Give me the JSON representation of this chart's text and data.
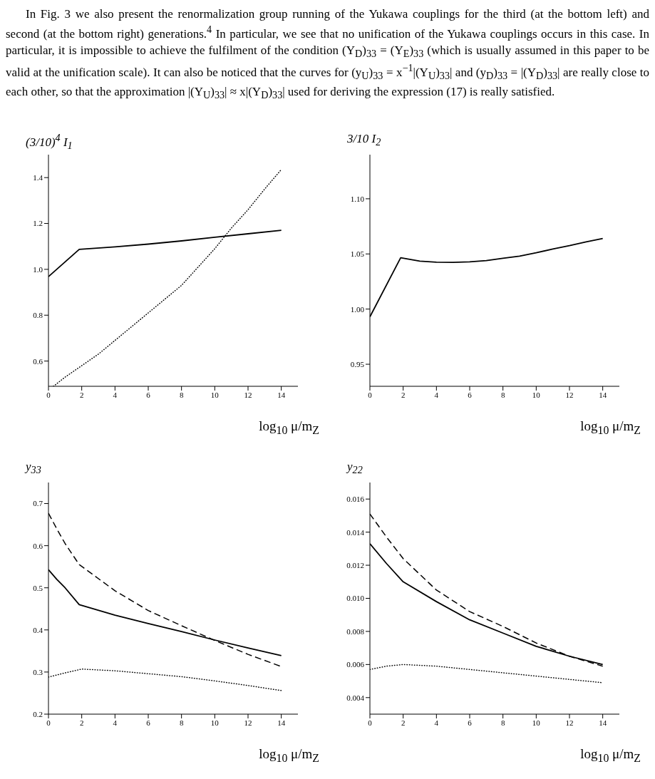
{
  "chart_data": [
    {
      "type": "line",
      "ylabel": "(3/10)$^{4}$ I$_{1}$",
      "xlabel": "log$_{10}$ μ/m$_{Z}$",
      "annotations": [
        "In Fig. 3 we also present the renormalization group running of the Yukawa couplings for the third (at the bottom left) and second (at the bottom right) generations.$^{4}$ In particular, we see that no unification of the Yukawa couplings occurs in this case. In particular, it is impossible to achieve the fulfilment of the condition (Y$_{D}$)$_{33}$ = (Y$_{E}$)$_{33}$ (which is usually assumed in this paper to be valid at the unification scale). It can also be noticed that the curves for (y$_{U}$)$_{33}$ = x$^{−1}$|(Y$_{U}$)$_{33}$| and (y$_{D}$)$_{33}$ = |(Y$_{D}$)$_{33}$| are really close to each other, so that the approximation |(Y$_{U}$)$_{33}$| ≈ x|(Y$_{D}$)$_{33}$| used for deriving the expression (17) is really satisfied."
      ],
      "xlim": [
        0,
        15
      ],
      "xticks": [
        0,
        2,
        4,
        6,
        8,
        10,
        12,
        14
      ],
      "ylim": [
        0.49,
        1.5
      ],
      "yticks": [
        0.6,
        0.8,
        {
          "value": 1,
          "label": "1.0"
        },
        1.2,
        1.4
      ],
      "marker": "none",
      "series": [
        {
          "color": "#000000",
          "line_style": "solid",
          "x": [
            0,
            1.85,
            4,
            6,
            8,
            10,
            12,
            14
          ],
          "values": [
            0.968,
            1.087,
            1.098,
            1.11,
            1.124,
            1.14,
            1.155,
            1.17
          ]
        },
        {
          "color": "#000000",
          "line_style": "dotted",
          "x": [
            0.3,
            1,
            2,
            3,
            4,
            5,
            6,
            7,
            8,
            9,
            10,
            11,
            12,
            13,
            14
          ],
          "values": [
            0.49,
            0.53,
            0.58,
            0.63,
            0.69,
            0.75,
            0.81,
            0.87,
            0.93,
            1.01,
            1.09,
            1.18,
            1.26,
            1.35,
            1.435
          ]
        }
      ]
    },
    {
      "type": "line",
      "ylabel": "3/10 I$_{2}$",
      "xlabel": "log$_{10}$ μ/m$_{Z}$",
      "xlim": [
        0,
        15
      ],
      "xticks": [
        0,
        2,
        4,
        6,
        8,
        10,
        12,
        14
      ],
      "ylim": [
        0.93,
        1.14
      ],
      "yticks": [
        0.95,
        {
          "value": 1,
          "label": "1.00"
        },
        1.05,
        {
          "value": 1.1,
          "label": "1.10"
        }
      ],
      "marker": "none",
      "series": [
        {
          "color": "#000000",
          "line_style": "solid",
          "x": [
            0,
            1.85,
            3,
            4,
            5,
            6,
            7,
            8,
            9,
            10,
            11,
            12,
            13,
            14
          ],
          "values": [
            0.993,
            1.0465,
            1.0435,
            1.0425,
            1.0423,
            1.0428,
            1.044,
            1.046,
            1.048,
            1.051,
            1.0545,
            1.0575,
            1.061,
            1.064
          ]
        }
      ]
    },
    {
      "type": "line",
      "ylabel": "y$_{33}$",
      "xlabel": "log$_{10}$ μ/m$_{Z}$",
      "xlim": [
        0,
        15
      ],
      "xticks": [
        0,
        2,
        4,
        6,
        8,
        10,
        12,
        14
      ],
      "ylim": [
        0.2,
        0.75
      ],
      "yticks": [
        0.2,
        0.3,
        0.4,
        0.5,
        0.6,
        0.7
      ],
      "marker": "none",
      "series": [
        {
          "color": "#000000",
          "line_style": "dashed",
          "x": [
            0,
            0.5,
            1,
            1.85,
            4,
            6,
            8,
            10,
            12,
            14
          ],
          "values": [
            0.677,
            0.64,
            0.605,
            0.555,
            0.493,
            0.446,
            0.41,
            0.375,
            0.342,
            0.313
          ]
        },
        {
          "color": "#000000",
          "line_style": "solid",
          "x": [
            0,
            0.5,
            1,
            1.85,
            4,
            6,
            8,
            10,
            12,
            14
          ],
          "values": [
            0.543,
            0.52,
            0.5,
            0.46,
            0.435,
            0.415,
            0.396,
            0.376,
            0.357,
            0.339
          ]
        },
        {
          "color": "#000000",
          "line_style": "dotted",
          "x": [
            0,
            1,
            2,
            4,
            6,
            8,
            10,
            12,
            14
          ],
          "values": [
            0.288,
            0.298,
            0.307,
            0.303,
            0.296,
            0.289,
            0.279,
            0.268,
            0.256
          ]
        }
      ]
    },
    {
      "type": "line",
      "ylabel": "y$_{22}$",
      "xlabel": "log$_{10}$ μ/m$_{Z}$",
      "xlim": [
        0,
        15
      ],
      "xticks": [
        0,
        2,
        4,
        6,
        8,
        10,
        12,
        14
      ],
      "ylim": [
        0.003,
        0.017
      ],
      "yticks": [
        0.004,
        0.006,
        0.008,
        {
          "value": 0.01,
          "label": "0.010"
        },
        0.012,
        0.014,
        0.016
      ],
      "marker": "none",
      "series": [
        {
          "color": "#000000",
          "line_style": "dashed",
          "x": [
            0,
            1,
            2,
            4,
            6,
            8,
            10,
            12,
            14
          ],
          "values": [
            0.0151,
            0.0137,
            0.0124,
            0.0105,
            0.0092,
            0.0083,
            0.0073,
            0.0065,
            0.0059
          ]
        },
        {
          "color": "#000000",
          "line_style": "solid",
          "x": [
            0,
            1,
            2,
            4,
            6,
            8,
            10,
            12,
            14
          ],
          "values": [
            0.0133,
            0.0121,
            0.011,
            0.0098,
            0.0087,
            0.0079,
            0.0071,
            0.0065,
            0.006
          ]
        },
        {
          "color": "#000000",
          "line_style": "dotted",
          "x": [
            0,
            1,
            2,
            4,
            6,
            8,
            10,
            12,
            14
          ],
          "values": [
            0.0057,
            0.0059,
            0.006,
            0.0059,
            0.0057,
            0.0055,
            0.0053,
            0.0051,
            0.0049
          ]
        }
      ]
    }
  ]
}
